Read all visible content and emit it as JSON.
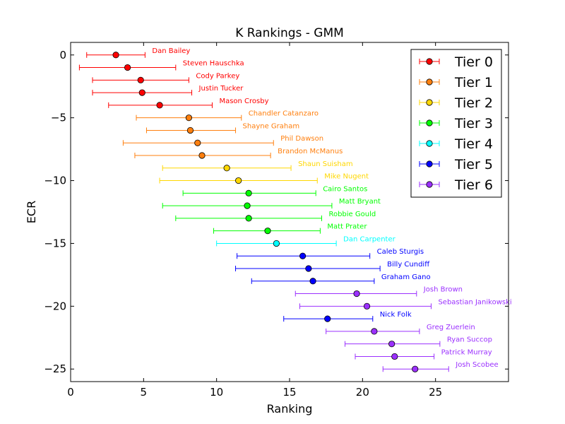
{
  "chart_data": {
    "type": "scatter",
    "title": "K Rankings - GMM",
    "xlabel": "Ranking",
    "ylabel": "ECR",
    "xlim": [
      0,
      30
    ],
    "ylim": [
      -26,
      1
    ],
    "xticks": [
      0,
      5,
      10,
      15,
      20,
      25
    ],
    "yticks": [
      0,
      -5,
      -10,
      -15,
      -20,
      -25
    ],
    "xtick_labels": [
      "0",
      "5",
      "10",
      "15",
      "20",
      "25"
    ],
    "ytick_labels": [
      "0",
      "−5",
      "−10",
      "−15",
      "−20",
      "−25"
    ],
    "grid": false,
    "legend_position": "top-right",
    "tiers": [
      {
        "name": "Tier 0",
        "color": "#ff0000"
      },
      {
        "name": "Tier 1",
        "color": "#ff7f0e"
      },
      {
        "name": "Tier 2",
        "color": "#ffd700"
      },
      {
        "name": "Tier 3",
        "color": "#00ff00"
      },
      {
        "name": "Tier 4",
        "color": "#00ffff"
      },
      {
        "name": "Tier 5",
        "color": "#0000ff"
      },
      {
        "name": "Tier 6",
        "color": "#9b30ff"
      }
    ],
    "points": [
      {
        "label": "Dan Bailey",
        "x": 3.1,
        "y": 0,
        "xmin": 1.1,
        "xmax": 5.1,
        "tier": 0
      },
      {
        "label": "Steven Hauschka",
        "x": 3.9,
        "y": -1,
        "xmin": 0.6,
        "xmax": 7.2,
        "tier": 0
      },
      {
        "label": "Cody Parkey",
        "x": 4.8,
        "y": -2,
        "xmin": 1.5,
        "xmax": 8.1,
        "tier": 0
      },
      {
        "label": "Justin Tucker",
        "x": 4.9,
        "y": -3,
        "xmin": 1.5,
        "xmax": 8.3,
        "tier": 0
      },
      {
        "label": "Mason Crosby",
        "x": 6.1,
        "y": -4,
        "xmin": 2.6,
        "xmax": 9.7,
        "tier": 0
      },
      {
        "label": "Chandler Catanzaro",
        "x": 8.1,
        "y": -5,
        "xmin": 4.5,
        "xmax": 11.7,
        "tier": 1
      },
      {
        "label": "Shayne Graham",
        "x": 8.2,
        "y": -6,
        "xmin": 5.2,
        "xmax": 11.3,
        "tier": 1
      },
      {
        "label": "Phil Dawson",
        "x": 8.7,
        "y": -7,
        "xmin": 3.6,
        "xmax": 13.9,
        "tier": 1
      },
      {
        "label": "Brandon McManus",
        "x": 9.0,
        "y": -8,
        "xmin": 4.4,
        "xmax": 13.7,
        "tier": 1
      },
      {
        "label": "Shaun Suisham",
        "x": 10.7,
        "y": -9,
        "xmin": 6.3,
        "xmax": 15.1,
        "tier": 2
      },
      {
        "label": "Mike Nugent",
        "x": 11.5,
        "y": -10,
        "xmin": 6.1,
        "xmax": 16.9,
        "tier": 2
      },
      {
        "label": "Cairo Santos",
        "x": 12.2,
        "y": -11,
        "xmin": 7.7,
        "xmax": 16.8,
        "tier": 3
      },
      {
        "label": "Matt Bryant",
        "x": 12.1,
        "y": -12,
        "xmin": 6.3,
        "xmax": 17.9,
        "tier": 3
      },
      {
        "label": "Robbie Gould",
        "x": 12.2,
        "y": -13,
        "xmin": 7.2,
        "xmax": 17.2,
        "tier": 3
      },
      {
        "label": "Matt Prater",
        "x": 13.5,
        "y": -14,
        "xmin": 9.8,
        "xmax": 17.1,
        "tier": 3
      },
      {
        "label": "Dan Carpenter",
        "x": 14.1,
        "y": -15,
        "xmin": 10.0,
        "xmax": 18.2,
        "tier": 4
      },
      {
        "label": "Caleb Sturgis",
        "x": 15.9,
        "y": -16,
        "xmin": 11.4,
        "xmax": 20.5,
        "tier": 5
      },
      {
        "label": "Billy Cundiff",
        "x": 16.3,
        "y": -17,
        "xmin": 11.3,
        "xmax": 21.2,
        "tier": 5
      },
      {
        "label": "Graham Gano",
        "x": 16.6,
        "y": -18,
        "xmin": 12.4,
        "xmax": 20.8,
        "tier": 5
      },
      {
        "label": "Josh Brown",
        "x": 19.6,
        "y": -19,
        "xmin": 15.4,
        "xmax": 23.7,
        "tier": 6
      },
      {
        "label": "Sebastian Janikowski",
        "x": 20.3,
        "y": -20,
        "xmin": 15.7,
        "xmax": 24.7,
        "tier": 6
      },
      {
        "label": "Nick Folk",
        "x": 17.6,
        "y": -21,
        "xmin": 14.6,
        "xmax": 20.7,
        "tier": 5
      },
      {
        "label": "Greg Zuerlein",
        "x": 20.8,
        "y": -22,
        "xmin": 17.5,
        "xmax": 23.9,
        "tier": 6
      },
      {
        "label": "Ryan Succop",
        "x": 22.0,
        "y": -23,
        "xmin": 18.8,
        "xmax": 25.3,
        "tier": 6
      },
      {
        "label": "Patrick Murray",
        "x": 22.2,
        "y": -24,
        "xmin": 19.5,
        "xmax": 24.9,
        "tier": 6
      },
      {
        "label": "Josh Scobee",
        "x": 23.6,
        "y": -25,
        "xmin": 21.4,
        "xmax": 25.9,
        "tier": 6
      }
    ]
  }
}
